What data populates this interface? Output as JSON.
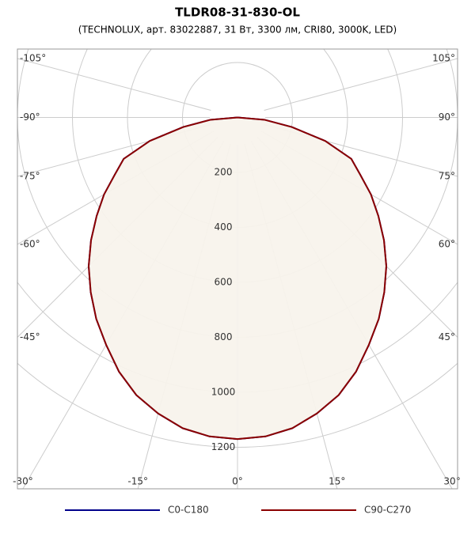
{
  "chart_data": {
    "type": "polar",
    "title": "TLDR08-31-830-OL",
    "subtitle": "(TECHNOLUX, арт. 83022887, 31 Вт, 3300 лм, CRI80, 3000K, LED)",
    "x": [
      -90,
      -85,
      -80,
      -75,
      -70,
      -65,
      -60,
      -55,
      -50,
      -45,
      -40,
      -35,
      -30,
      -25,
      -20,
      -15,
      -10,
      -5,
      0,
      5,
      10,
      15,
      20,
      25,
      30,
      35,
      40,
      45,
      50,
      55,
      60,
      65,
      70,
      75,
      80,
      85,
      90
    ],
    "series": [
      {
        "name": "C0-C180",
        "color": "#00008b",
        "values": [
          0,
          100,
          200,
          330,
          440,
          492,
          560,
          625,
          695,
          765,
          830,
          895,
          955,
          1020,
          1075,
          1115,
          1148,
          1165,
          1170,
          1165,
          1148,
          1115,
          1075,
          1020,
          955,
          895,
          830,
          765,
          695,
          625,
          560,
          492,
          440,
          330,
          200,
          100,
          0
        ]
      },
      {
        "name": "C90-C270",
        "color": "#8b0000",
        "values": [
          0,
          100,
          200,
          330,
          440,
          492,
          560,
          625,
          695,
          765,
          830,
          895,
          955,
          1020,
          1075,
          1115,
          1148,
          1165,
          1170,
          1165,
          1148,
          1115,
          1075,
          1020,
          955,
          895,
          830,
          765,
          695,
          625,
          560,
          492,
          440,
          330,
          200,
          100,
          0
        ]
      }
    ],
    "fill": "#f7f3ec",
    "rlim": [
      0,
      1200
    ],
    "rticks": [
      200,
      400,
      600,
      800,
      1000,
      1200
    ],
    "angle_ticks": [
      {
        "value": -105,
        "label": "-105°"
      },
      {
        "value": -90,
        "label": "-90°"
      },
      {
        "value": -75,
        "label": "-75°"
      },
      {
        "value": -60,
        "label": "-60°"
      },
      {
        "value": -45,
        "label": "-45°"
      },
      {
        "value": -30,
        "label": "-30°"
      },
      {
        "value": -15,
        "label": "-15°"
      },
      {
        "value": 0,
        "label": "0°"
      },
      {
        "value": 15,
        "label": "15°"
      },
      {
        "value": 30,
        "label": "30°"
      },
      {
        "value": 45,
        "label": "45°"
      },
      {
        "value": 60,
        "label": "60°"
      },
      {
        "value": 75,
        "label": "75°"
      },
      {
        "value": 90,
        "label": "90°"
      },
      {
        "value": 105,
        "label": "105°"
      }
    ],
    "grid": true
  }
}
